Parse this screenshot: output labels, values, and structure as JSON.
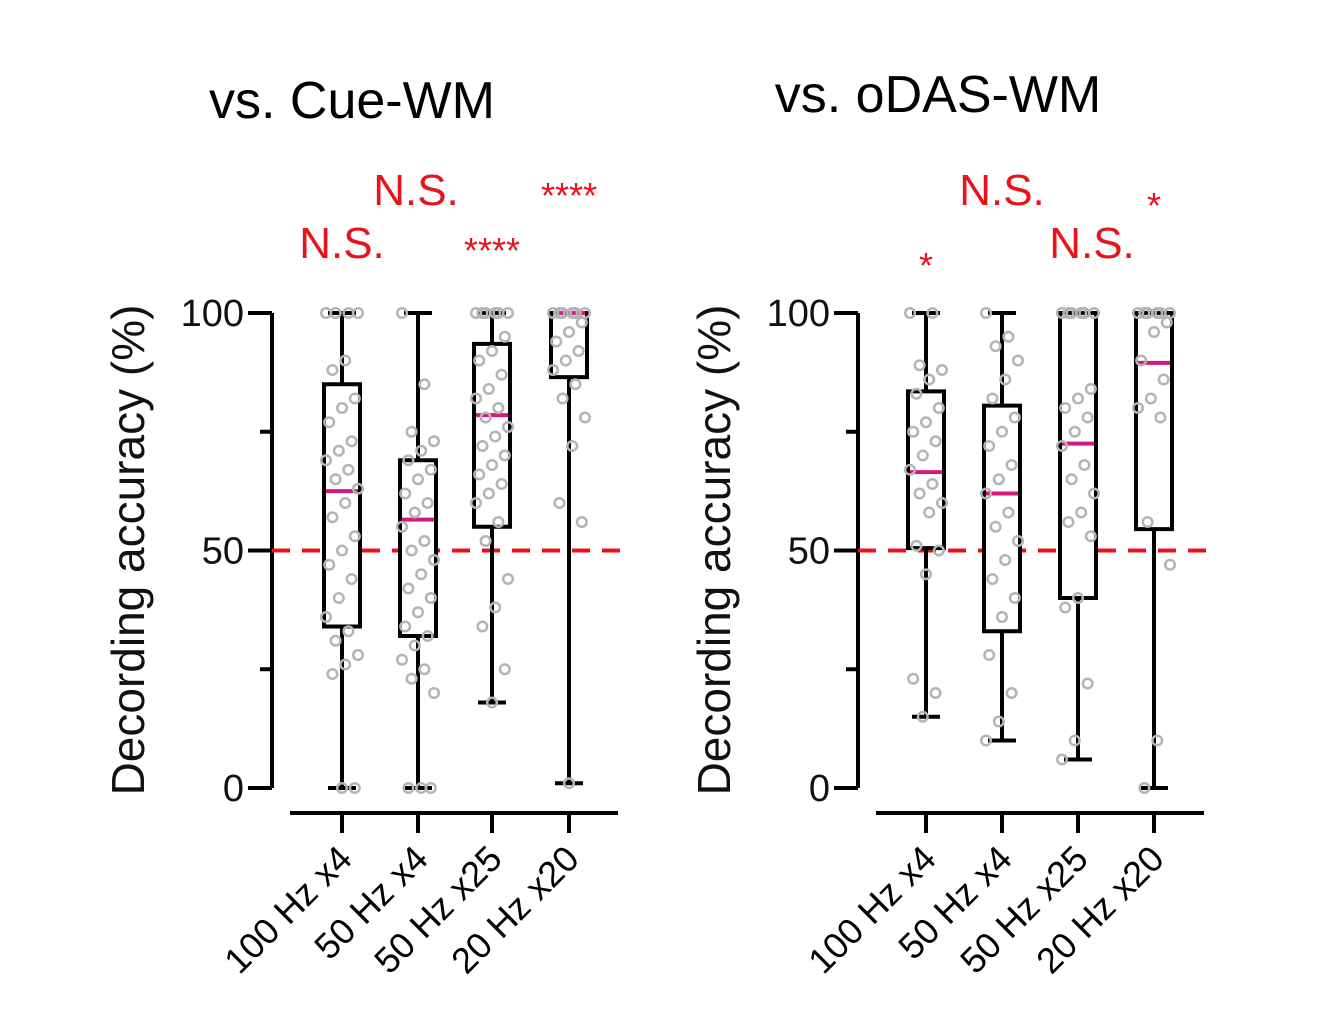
{
  "colors": {
    "median": "#d6177e",
    "chance": "#e8141c",
    "significance": "#e8141c",
    "points": "#b4b4b4",
    "axis": "#000000"
  },
  "chart_data": [
    {
      "type": "box",
      "title": "vs. Cue-WM",
      "ylabel": "Decording accuracy (%)",
      "ylim": [
        0,
        100
      ],
      "yticks": [
        0,
        50,
        100
      ],
      "chance_level": 50,
      "categories": [
        "100 Hz x4",
        "50 Hz x4",
        "50 Hz x25",
        "20 Hz x20"
      ],
      "significance": [
        "N.S.",
        "N.S.",
        "****",
        "****"
      ],
      "boxes": [
        {
          "min": 0,
          "q1": 34,
          "median": 62.5,
          "q3": 85,
          "max": 100,
          "points": [
            100,
            100,
            100,
            100,
            90,
            88,
            82,
            80,
            77,
            73,
            71,
            69,
            67,
            65,
            63,
            60,
            57,
            53,
            50,
            47,
            44,
            40,
            36,
            33,
            31,
            28,
            26,
            24,
            0,
            0
          ]
        },
        {
          "min": 0,
          "q1": 32,
          "median": 56.5,
          "q3": 69,
          "max": 100,
          "points": [
            100,
            85,
            75,
            73,
            71,
            69,
            67,
            65,
            62,
            60,
            58,
            55,
            52,
            50,
            48,
            45,
            42,
            40,
            37,
            34,
            32,
            30,
            27,
            25,
            23,
            20,
            0,
            0,
            0
          ]
        },
        {
          "min": 18,
          "q1": 55,
          "median": 78.5,
          "q3": 93.5,
          "max": 100,
          "points": [
            100,
            100,
            100,
            100,
            100,
            100,
            95,
            92,
            90,
            87,
            84,
            82,
            80,
            78,
            76,
            74,
            72,
            70,
            68,
            66,
            64,
            62,
            60,
            56,
            52,
            44,
            38,
            34,
            25,
            18
          ]
        },
        {
          "min": 1,
          "q1": 86.5,
          "median": 100,
          "q3": 100,
          "max": 100,
          "points": [
            100,
            100,
            100,
            100,
            100,
            100,
            98,
            96,
            94,
            92,
            90,
            88,
            85,
            82,
            78,
            72,
            60,
            56,
            1
          ]
        }
      ]
    },
    {
      "type": "box",
      "title": "vs. oDAS-WM",
      "ylabel": "Decording accuracy (%)",
      "ylim": [
        0,
        100
      ],
      "yticks": [
        0,
        50,
        100
      ],
      "chance_level": 50,
      "categories": [
        "100 Hz x4",
        "50 Hz x4",
        "50 Hz x25",
        "20 Hz x20"
      ],
      "significance": [
        "*",
        "N.S.",
        "N.S.",
        "*"
      ],
      "boxes": [
        {
          "min": 15,
          "q1": 50.5,
          "median": 66.5,
          "q3": 83.5,
          "max": 100,
          "points": [
            100,
            100,
            89,
            88,
            86,
            83,
            80,
            77,
            75,
            73,
            70,
            67,
            64,
            62,
            60,
            58,
            51,
            50,
            45,
            23,
            20,
            15
          ]
        },
        {
          "min": 10,
          "q1": 33,
          "median": 62,
          "q3": 80.5,
          "max": 100,
          "points": [
            100,
            95,
            93,
            90,
            86,
            82,
            78,
            75,
            72,
            68,
            65,
            62,
            58,
            55,
            52,
            48,
            44,
            40,
            36,
            28,
            20,
            14,
            10
          ]
        },
        {
          "min": 6,
          "q1": 40,
          "median": 72.5,
          "q3": 100,
          "max": 100,
          "points": [
            100,
            100,
            100,
            100,
            100,
            100,
            84,
            82,
            80,
            78,
            75,
            72,
            68,
            65,
            62,
            58,
            56,
            53,
            40,
            38,
            22,
            10,
            6
          ]
        },
        {
          "min": 0,
          "q1": 54.5,
          "median": 89.5,
          "q3": 100,
          "max": 100,
          "points": [
            100,
            100,
            100,
            100,
            100,
            100,
            98,
            96,
            90,
            86,
            82,
            80,
            78,
            56,
            47,
            10,
            0
          ]
        }
      ]
    }
  ]
}
